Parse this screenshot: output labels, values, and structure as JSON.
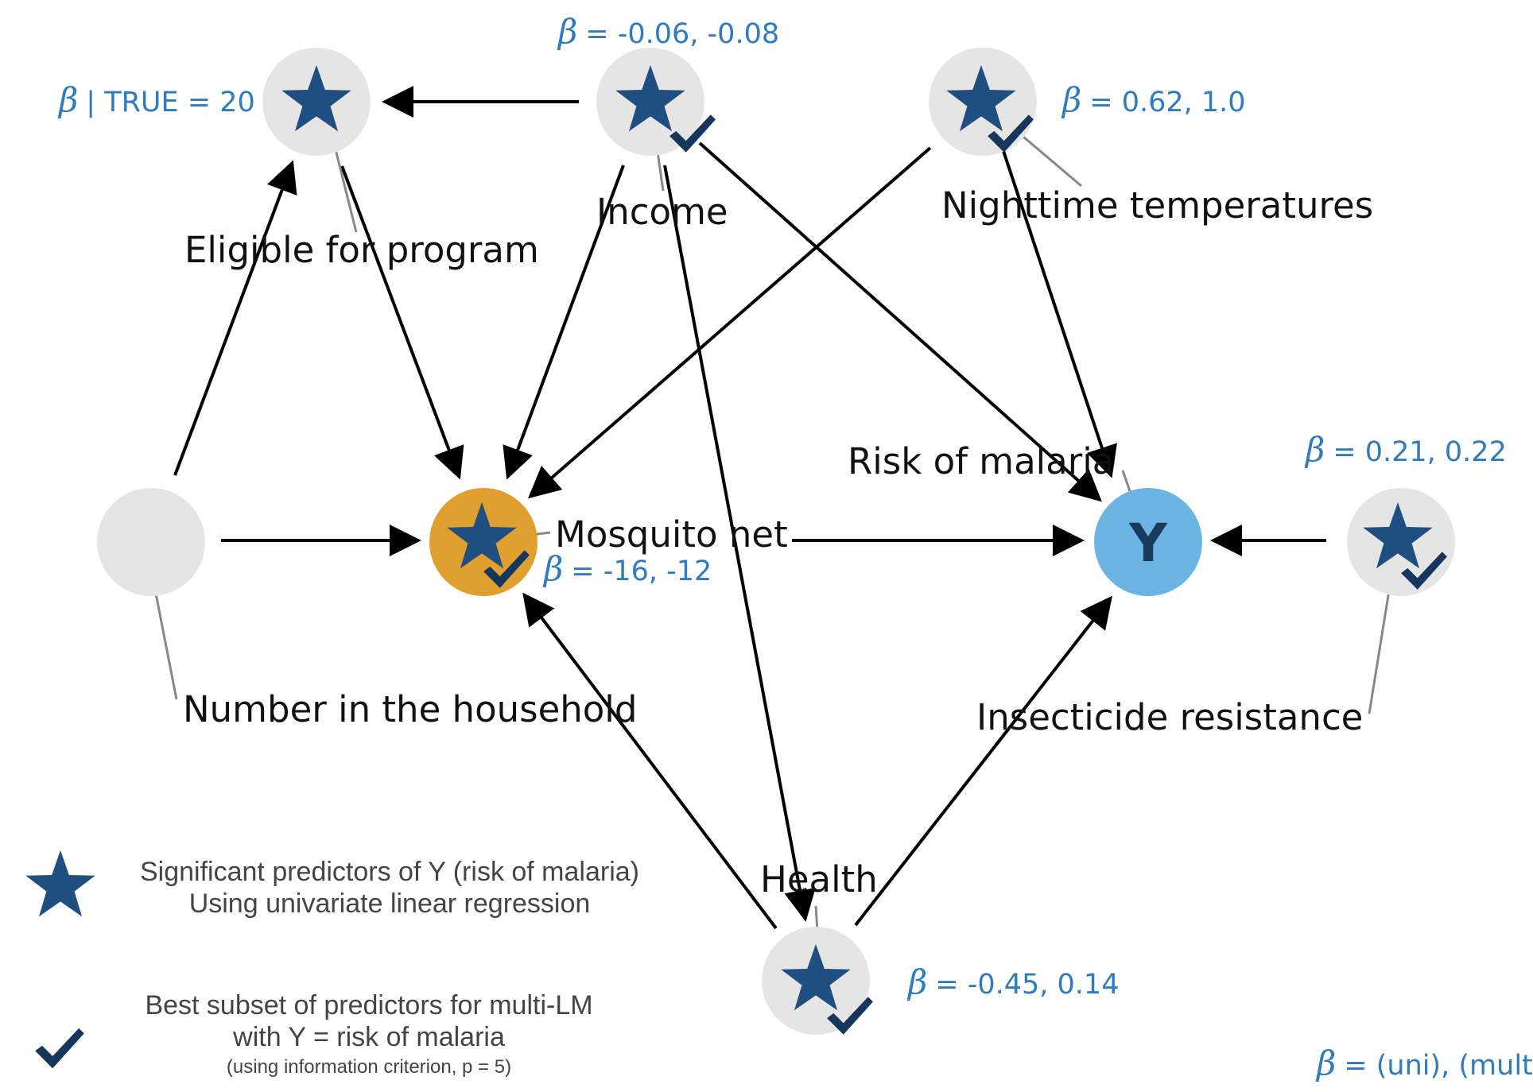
{
  "colors": {
    "node_default": "#e5e5e5",
    "node_exposure": "#e0a030",
    "node_outcome": "#6cb4e4",
    "star": "#1f4e80",
    "check": "#17365d",
    "beta": "#2f7bc0"
  },
  "nodes": {
    "eligible": {
      "label": "Eligible for program",
      "beta": "| TRUE = 20",
      "star": true,
      "check": false
    },
    "income": {
      "label": "Income",
      "beta": "= -0.06, -0.08",
      "star": true,
      "check": true
    },
    "nighttime": {
      "label": "Nighttime temperatures",
      "beta": "= 0.62, 1.0",
      "star": true,
      "check": true
    },
    "household": {
      "label": "Number in the household",
      "star": false,
      "check": false
    },
    "mosquito": {
      "label": "Mosquito net",
      "beta": "= -16, -12",
      "star": true,
      "check": true
    },
    "malaria": {
      "label": "Risk of malaria",
      "letter": "Y"
    },
    "insecticide": {
      "label": "Insecticide resistance",
      "beta": "= 0.21, 0.22",
      "star": true,
      "check": true
    },
    "health": {
      "label": "Health",
      "beta": "= -0.45, 0.14",
      "star": true,
      "check": true
    }
  },
  "beta_symbol": "β",
  "legend": {
    "star_line1": "Significant predictors of Y (risk of malaria)",
    "star_line2": "Using univariate linear regression",
    "check_line1": "Best subset of predictors for multi-LM",
    "check_line2": "with Y = risk of malaria",
    "check_line3": "(using information criterion, p = 5)",
    "beta_note": "= (uni), (multi)"
  },
  "icons": {
    "star": "star-icon",
    "check": "check-icon"
  }
}
